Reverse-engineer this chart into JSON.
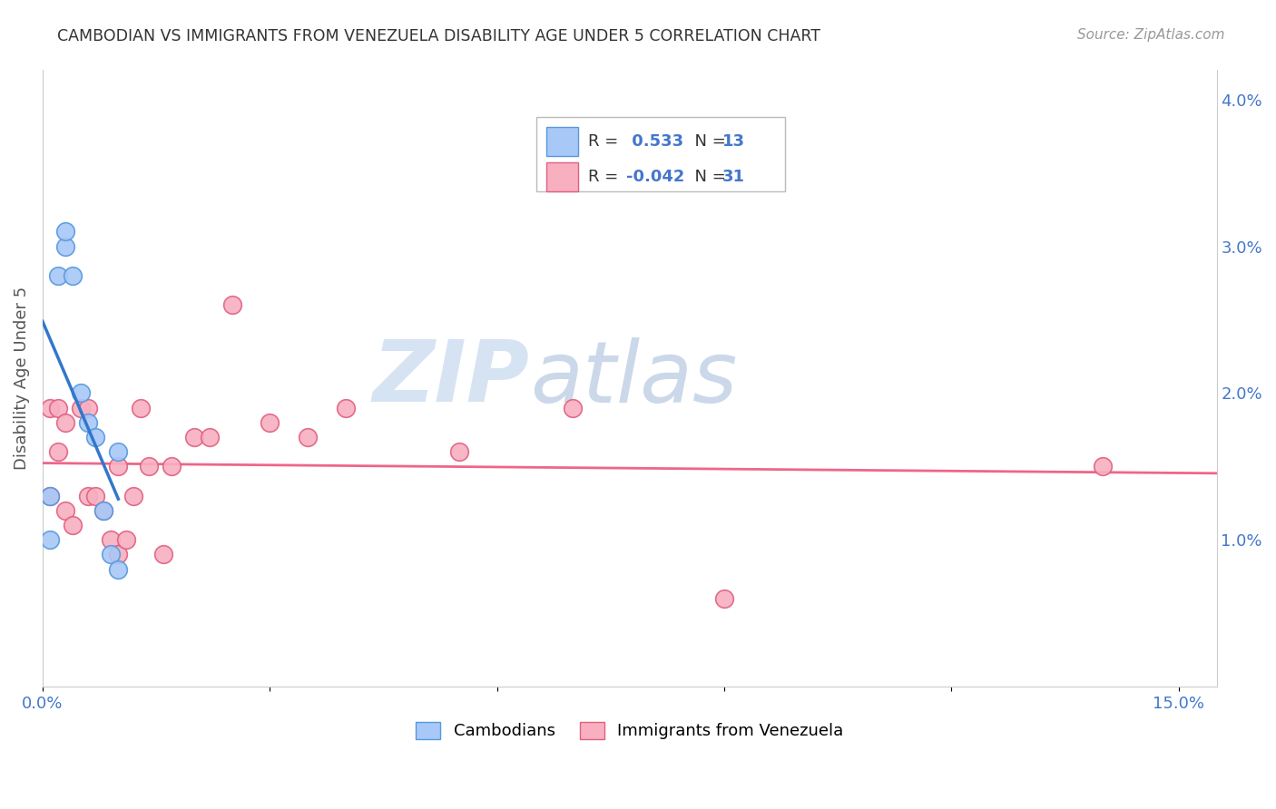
{
  "title": "CAMBODIAN VS IMMIGRANTS FROM VENEZUELA DISABILITY AGE UNDER 5 CORRELATION CHART",
  "source": "Source: ZipAtlas.com",
  "ylabel": "Disability Age Under 5",
  "blue_color": "#a8c8f8",
  "blue_edge": "#5599dd",
  "pink_color": "#f8b0c0",
  "pink_edge": "#e06080",
  "trend_blue_color": "#3377cc",
  "trend_pink_color": "#ee6688",
  "cambodians_x": [
    0.001,
    0.001,
    0.002,
    0.003,
    0.003,
    0.004,
    0.005,
    0.006,
    0.007,
    0.008,
    0.009,
    0.01,
    0.01
  ],
  "cambodians_y": [
    0.01,
    0.013,
    0.028,
    0.03,
    0.031,
    0.028,
    0.02,
    0.018,
    0.017,
    0.012,
    0.009,
    0.016,
    0.008
  ],
  "venezuelans_x": [
    0.001,
    0.001,
    0.002,
    0.002,
    0.003,
    0.003,
    0.004,
    0.005,
    0.006,
    0.006,
    0.007,
    0.008,
    0.009,
    0.01,
    0.01,
    0.011,
    0.012,
    0.013,
    0.014,
    0.016,
    0.017,
    0.02,
    0.022,
    0.025,
    0.03,
    0.035,
    0.04,
    0.055,
    0.07,
    0.09,
    0.14
  ],
  "venezuelans_y": [
    0.013,
    0.019,
    0.019,
    0.016,
    0.018,
    0.012,
    0.011,
    0.019,
    0.019,
    0.013,
    0.013,
    0.012,
    0.01,
    0.015,
    0.009,
    0.01,
    0.013,
    0.019,
    0.015,
    0.009,
    0.015,
    0.017,
    0.017,
    0.026,
    0.018,
    0.017,
    0.019,
    0.016,
    0.019,
    0.006,
    0.015
  ],
  "xlim": [
    0.0,
    0.155
  ],
  "ylim": [
    0.0,
    0.042
  ],
  "r_blue": "0.533",
  "n_blue": "13",
  "r_pink": "-0.042",
  "n_pink": "31",
  "legend_r_color": "#4477cc",
  "legend_n_color": "#4477cc",
  "watermark": "ZIPatlas",
  "watermark_zip_color": "#c8dcf0",
  "watermark_atlas_color": "#b8c8e0",
  "grid_color": "#dddddd",
  "spine_color": "#cccccc",
  "tick_color": "#4477cc",
  "title_color": "#333333",
  "source_color": "#999999",
  "ylabel_color": "#555555"
}
